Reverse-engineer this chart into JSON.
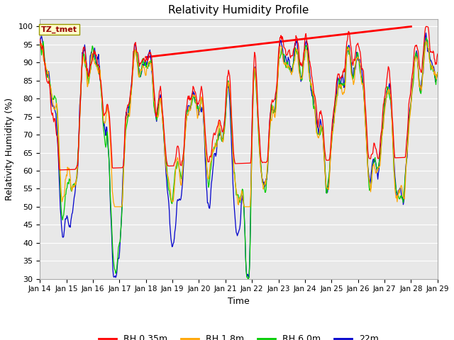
{
  "title": "Relativity Humidity Profile",
  "xlabel": "Time",
  "ylabel": "Relativity Humidity (%)",
  "ylim": [
    30,
    102
  ],
  "yticks": [
    30,
    35,
    40,
    45,
    50,
    55,
    60,
    65,
    70,
    75,
    80,
    85,
    90,
    95,
    100
  ],
  "colors": {
    "RH 0.35m": "#ff0000",
    "RH 1.8m": "#ffa500",
    "RH 6.0m": "#00cc00",
    "22m": "#0000cc"
  },
  "fig_bg_color": "#ffffff",
  "plot_bg_color": "#e8e8e8",
  "grid_color": "#ffffff",
  "annotation_text": "TZ_tmet",
  "annotation_color": "#990000",
  "annotation_bg": "#ffffcc",
  "annotation_edge": "#999900",
  "trend_x": [
    18.0,
    28.0
  ],
  "trend_y": [
    91.5,
    100.0
  ],
  "n_points": 720,
  "x_start": 14,
  "x_end": 29,
  "xtick_positions": [
    14,
    15,
    16,
    17,
    18,
    19,
    20,
    21,
    22,
    23,
    24,
    25,
    26,
    27,
    28,
    29
  ],
  "xtick_labels": [
    "Jan 14",
    "Jan 15",
    "Jan 16",
    "Jan 17",
    "Jan 18",
    "Jan 19",
    "Jan 20",
    "Jan 21",
    "Jan 22",
    "Jan 23",
    "Jan 24",
    "Jan 25",
    "Jan 26",
    "Jan 27",
    "Jan 28",
    "Jan 29"
  ]
}
